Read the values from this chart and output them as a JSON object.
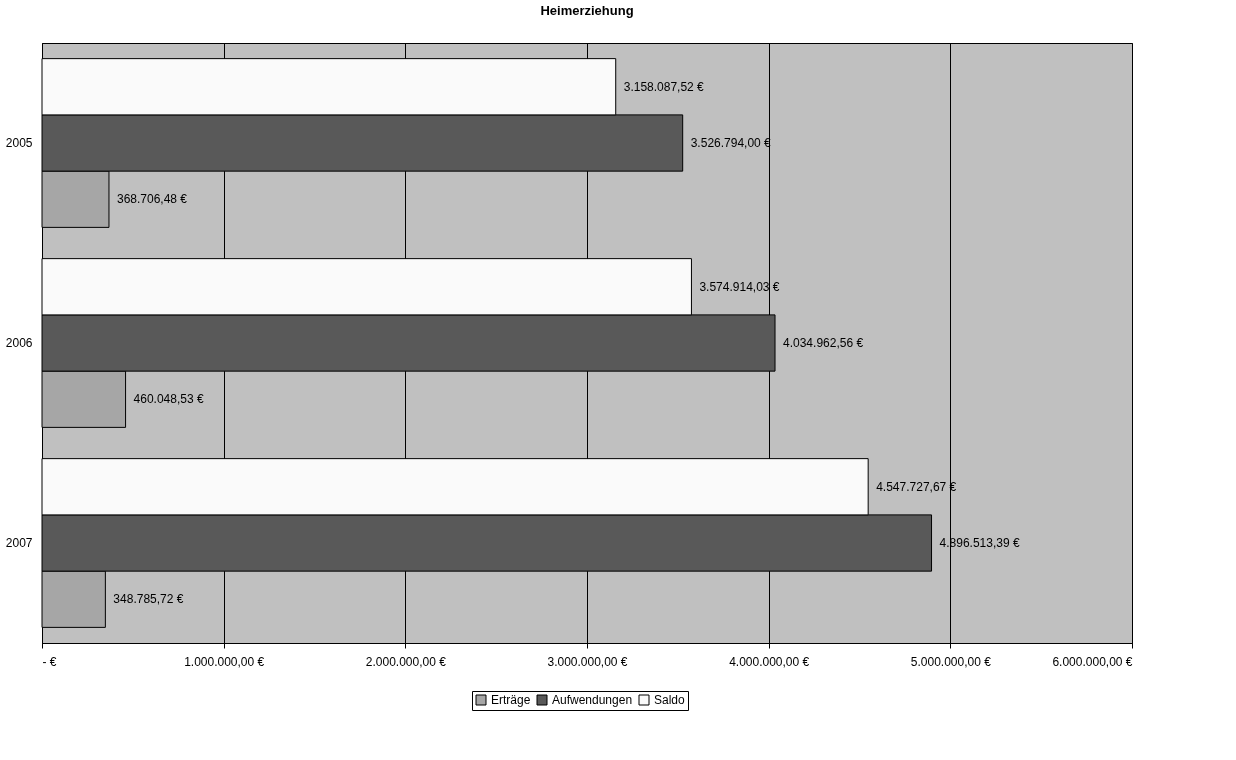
{
  "chart_data": {
    "type": "bar",
    "orientation": "horizontal",
    "title": "Heimerziehung",
    "categories": [
      "2005",
      "2006",
      "2007"
    ],
    "series": [
      {
        "name": "Erträge",
        "color": "#a6a6a6",
        "values": [
          368706.48,
          460048.53,
          348785.72
        ],
        "value_labels": [
          "368.706,48 €",
          "460.048,53 €",
          "348.785,72 €"
        ]
      },
      {
        "name": "Aufwendungen",
        "color": "#595959",
        "values": [
          3526794.0,
          4034962.56,
          4896513.39
        ],
        "value_labels": [
          "3.526.794,00 €",
          "4.034.962,56 €",
          "4.896.513,39 €"
        ]
      },
      {
        "name": "Saldo",
        "color": "#fafafa",
        "values": [
          3158087.52,
          3574914.03,
          4547727.67
        ],
        "value_labels": [
          "3.158.087,52 €",
          "3.574.914,03 €",
          "4.547.727,67 €"
        ]
      }
    ],
    "xlim": [
      0,
      6000000
    ],
    "xticks": [
      {
        "value": 0,
        "label": "-    €"
      },
      {
        "value": 1000000,
        "label": "1.000.000,00 €"
      },
      {
        "value": 2000000,
        "label": "2.000.000,00 €"
      },
      {
        "value": 3000000,
        "label": "3.000.000,00 €"
      },
      {
        "value": 4000000,
        "label": "4.000.000,00 €"
      },
      {
        "value": 5000000,
        "label": "5.000.000,00 €"
      },
      {
        "value": 6000000,
        "label": "6.000.000,00 €"
      }
    ],
    "grid": "x",
    "legend": "bottom"
  }
}
